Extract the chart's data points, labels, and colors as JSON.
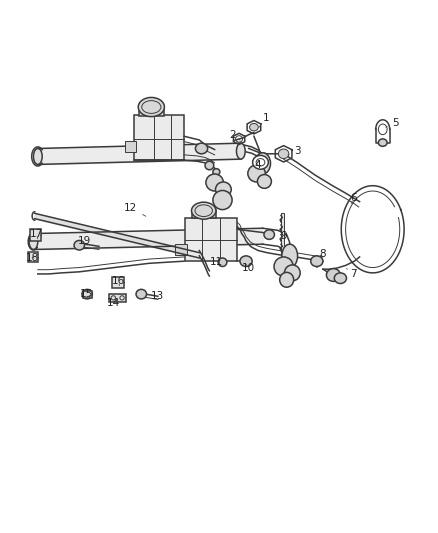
{
  "bg_color": "#ffffff",
  "line_color": "#3a3a3a",
  "label_color": "#222222",
  "fig_width": 4.38,
  "fig_height": 5.33,
  "dpi": 100,
  "label_fontsize": 7.5,
  "lw_main": 1.1,
  "lw_thick": 1.8,
  "lw_thin": 0.7,
  "label_items": {
    "1": [
      0.608,
      0.78,
      0.592,
      0.762
    ],
    "2": [
      0.53,
      0.748,
      0.548,
      0.738
    ],
    "3": [
      0.68,
      0.718,
      0.658,
      0.71
    ],
    "4": [
      0.588,
      0.69,
      0.59,
      0.7
    ],
    "5": [
      0.905,
      0.77,
      0.882,
      0.762
    ],
    "6": [
      0.808,
      0.628,
      0.8,
      0.614
    ],
    "7": [
      0.808,
      0.486,
      0.792,
      0.496
    ],
    "8": [
      0.738,
      0.524,
      0.725,
      0.516
    ],
    "9": [
      0.648,
      0.558,
      0.638,
      0.548
    ],
    "10": [
      0.568,
      0.498,
      0.56,
      0.506
    ],
    "11": [
      0.495,
      0.508,
      0.508,
      0.514
    ],
    "12": [
      0.298,
      0.61,
      0.338,
      0.592
    ],
    "13": [
      0.36,
      0.444,
      0.345,
      0.448
    ],
    "14": [
      0.258,
      0.432,
      0.268,
      0.438
    ],
    "15": [
      0.197,
      0.448,
      0.205,
      0.444
    ],
    "16": [
      0.27,
      0.472,
      0.272,
      0.464
    ],
    "17": [
      0.082,
      0.562,
      0.085,
      0.552
    ],
    "18": [
      0.072,
      0.516,
      0.075,
      0.52
    ],
    "19": [
      0.192,
      0.548,
      0.198,
      0.54
    ]
  }
}
